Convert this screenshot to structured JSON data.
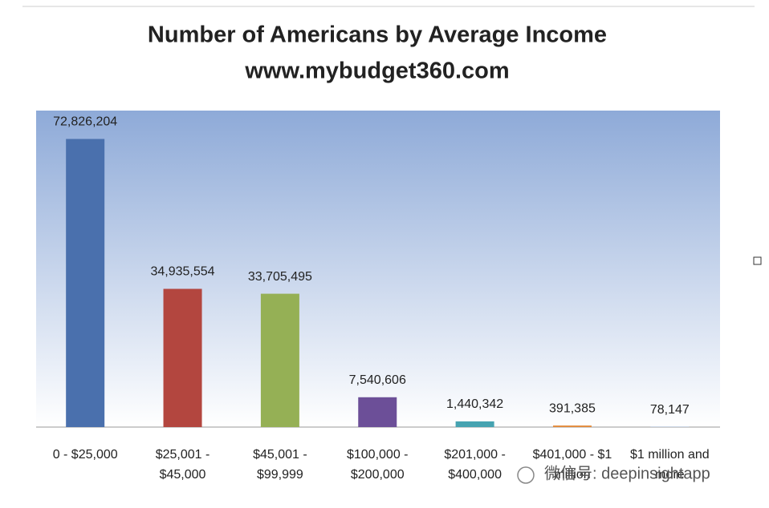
{
  "chart_data": {
    "type": "bar",
    "title": "Number of Americans by Average Income",
    "subtitle": "www.mybudget360.com",
    "categories": [
      [
        "0 - $25,000"
      ],
      [
        "$25,001 -",
        "$45,000"
      ],
      [
        "$45,001 -",
        "$99,999"
      ],
      [
        "$100,000 -",
        "$200,000"
      ],
      [
        "$201,000 -",
        "$400,000"
      ],
      [
        "$401,000 - $1",
        "million"
      ],
      [
        "$1 million and",
        "more"
      ]
    ],
    "values": [
      72826204,
      34935554,
      33705495,
      7540606,
      1440342,
      391385,
      78147
    ],
    "value_labels": [
      "72,826,204",
      "34,935,554",
      "33,705,495",
      "7,540,606",
      "1,440,342",
      "391,385",
      "78,147"
    ],
    "colors": [
      "#4a70ad",
      "#b3463f",
      "#95b055",
      "#6c4f98",
      "#46a3b1",
      "#e38b3c",
      "#9ab5da"
    ],
    "ylim": [
      0,
      80000000
    ],
    "watermark": "微信号: deepinsightapp"
  }
}
